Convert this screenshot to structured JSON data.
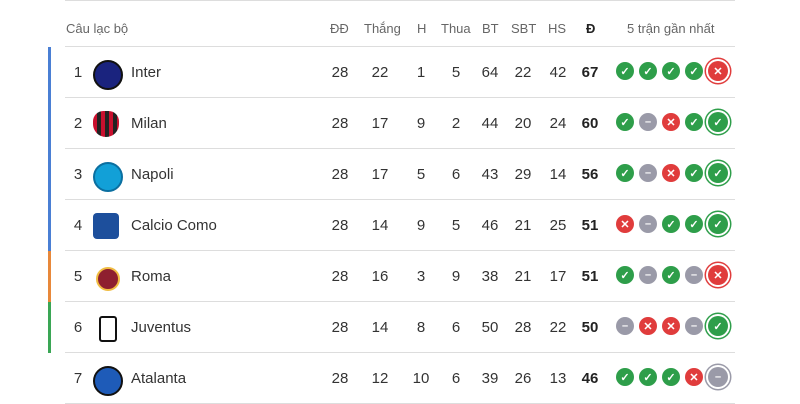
{
  "header": {
    "club": "Câu lạc bộ",
    "played": "ĐĐ",
    "won": "Thắng",
    "draw": "H",
    "lost": "Thua",
    "gf": "BT",
    "ga": "SBT",
    "gd": "HS",
    "pts": "Đ",
    "form": "5 trận gần nhất"
  },
  "colors": {
    "champions": "#4a7fd4",
    "europa": "#e8883a",
    "conference": "#3aa655",
    "win": "#2e9e4a",
    "loss": "#e03c3c",
    "draw": "#9a9aa8"
  },
  "rows": [
    {
      "rank": "1",
      "club": "Inter",
      "logo": "inter-logo",
      "zone": "champions",
      "played": "28",
      "won": "22",
      "draw": "1",
      "lost": "5",
      "gf": "64",
      "ga": "22",
      "gd": "42",
      "pts": "67",
      "form": [
        "W",
        "W",
        "W",
        "W",
        "L"
      ]
    },
    {
      "rank": "2",
      "club": "Milan",
      "logo": "milan-logo",
      "zone": "champions",
      "played": "28",
      "won": "17",
      "draw": "9",
      "lost": "2",
      "gf": "44",
      "ga": "20",
      "gd": "24",
      "pts": "60",
      "form": [
        "W",
        "D",
        "L",
        "W",
        "W"
      ]
    },
    {
      "rank": "3",
      "club": "Napoli",
      "logo": "napoli-logo",
      "zone": "champions",
      "played": "28",
      "won": "17",
      "draw": "5",
      "lost": "6",
      "gf": "43",
      "ga": "29",
      "gd": "14",
      "pts": "56",
      "form": [
        "W",
        "D",
        "L",
        "W",
        "W"
      ]
    },
    {
      "rank": "4",
      "club": "Calcio Como",
      "logo": "como-logo",
      "zone": "champions",
      "played": "28",
      "won": "14",
      "draw": "9",
      "lost": "5",
      "gf": "46",
      "ga": "21",
      "gd": "25",
      "pts": "51",
      "form": [
        "L",
        "D",
        "W",
        "W",
        "W"
      ]
    },
    {
      "rank": "5",
      "club": "Roma",
      "logo": "roma-logo",
      "zone": "europa",
      "played": "28",
      "won": "16",
      "draw": "3",
      "lost": "9",
      "gf": "38",
      "ga": "21",
      "gd": "17",
      "pts": "51",
      "form": [
        "W",
        "D",
        "W",
        "D",
        "L"
      ]
    },
    {
      "rank": "6",
      "club": "Juventus",
      "logo": "juventus-logo",
      "zone": "conference",
      "played": "28",
      "won": "14",
      "draw": "8",
      "lost": "6",
      "gf": "50",
      "ga": "28",
      "gd": "22",
      "pts": "50",
      "form": [
        "D",
        "L",
        "L",
        "D",
        "W"
      ]
    },
    {
      "rank": "7",
      "club": "Atalanta",
      "logo": "atalanta-logo",
      "zone": "",
      "played": "28",
      "won": "12",
      "draw": "10",
      "lost": "6",
      "gf": "39",
      "ga": "26",
      "gd": "13",
      "pts": "46",
      "form": [
        "W",
        "W",
        "W",
        "L",
        "D"
      ]
    }
  ]
}
